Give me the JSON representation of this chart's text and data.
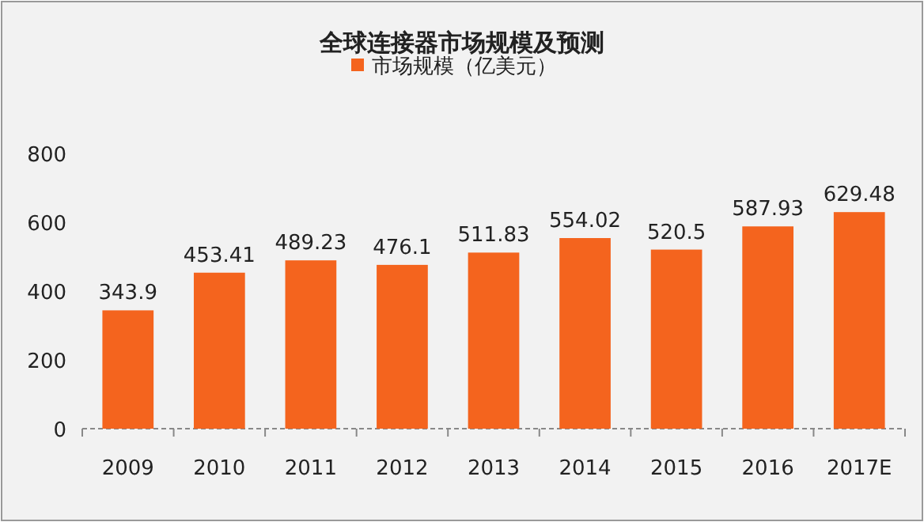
{
  "chart_data": {
    "type": "bar",
    "title": "全球连接器市场规模及预测",
    "categories": [
      "2009",
      "2010",
      "2011",
      "2012",
      "2013",
      "2014",
      "2015",
      "2016",
      "2017E"
    ],
    "series": [
      {
        "name": "市场规模（亿美元）",
        "color": "#f4641e",
        "values": [
          343.9,
          453.41,
          489.23,
          476.1,
          511.83,
          554.02,
          520.5,
          587.93,
          629.48
        ]
      }
    ],
    "ylim": [
      0,
      800
    ],
    "yticks": [
      0,
      200,
      400,
      600,
      800
    ],
    "data_labels": true,
    "legend": "top",
    "grid": false
  }
}
